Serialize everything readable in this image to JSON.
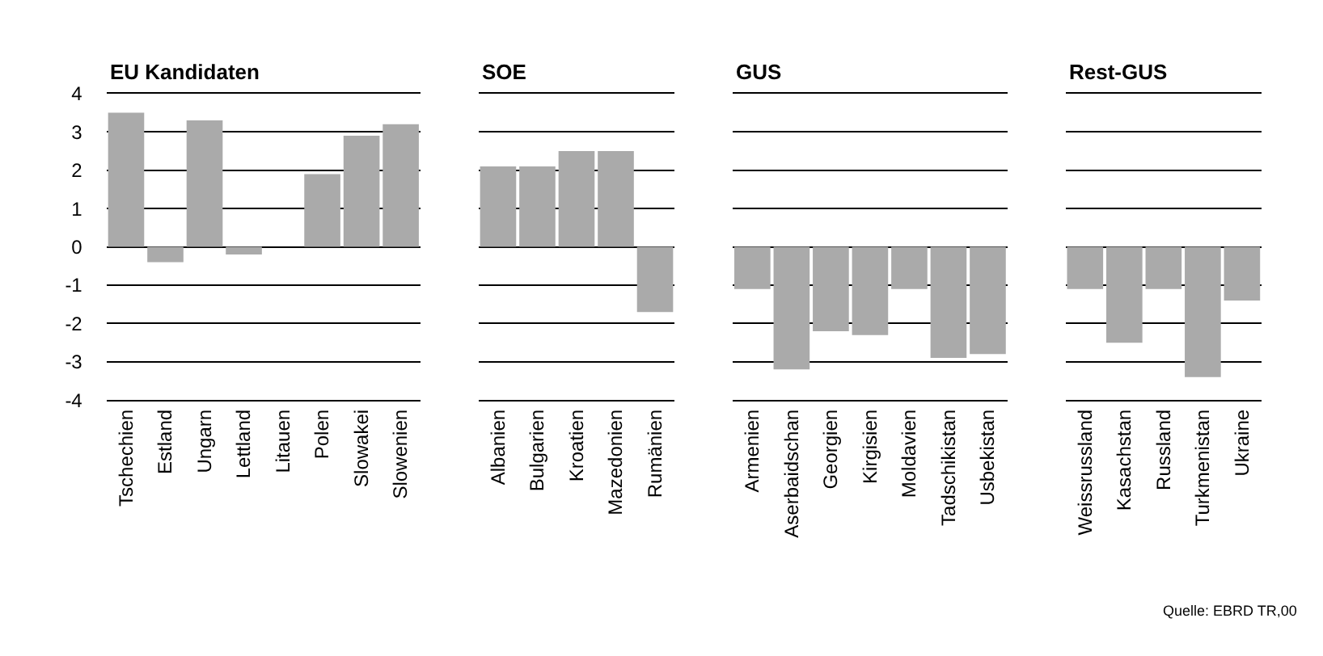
{
  "chart_data": [
    {
      "type": "bar",
      "title": "EU Kandidaten",
      "categories": [
        "Tschechien",
        "Estland",
        "Ungarn",
        "Lettland",
        "Litauen",
        "Polen",
        "Slowakei",
        "Slowenien"
      ],
      "values": [
        3.5,
        -0.4,
        3.3,
        -0.2,
        0,
        1.9,
        2.9,
        3.2
      ],
      "color": "#aaaaaa",
      "ylim": [
        -4,
        4
      ],
      "yticks": [
        -4,
        -3,
        -2,
        -1,
        0,
        1,
        2,
        3,
        4
      ],
      "grid": "y"
    },
    {
      "type": "bar",
      "title": "SOE",
      "categories": [
        "Albanien",
        "Bulgarien",
        "Kroatien",
        "Mazedonien",
        "Rumänien"
      ],
      "values": [
        2.1,
        2.1,
        2.5,
        2.5,
        -1.7
      ],
      "color": "#aaaaaa",
      "ylim": [
        -4,
        4
      ],
      "yticks": [
        -4,
        -3,
        -2,
        -1,
        0,
        1,
        2,
        3,
        4
      ],
      "grid": "y",
      "tick_labels": "x"
    },
    {
      "type": "bar",
      "title": "GUS",
      "categories": [
        "Armenien",
        "Aserbaidschan",
        "Georgien",
        "Kirgisien",
        "Moldavien",
        "Tadschikistan",
        "Usbekistan"
      ],
      "values": [
        -1.1,
        -3.2,
        -2.2,
        -2.3,
        -1.1,
        -2.9,
        -2.8
      ],
      "color": "#aaaaaa",
      "ylim": [
        -4,
        4
      ],
      "yticks": [
        -4,
        -3,
        -2,
        -1,
        0,
        1,
        2,
        3,
        4
      ],
      "grid": "y",
      "tick_labels": "x"
    },
    {
      "type": "bar",
      "title": "Rest-GUS",
      "categories": [
        "Weissrussland",
        "Kasachstan",
        "Russland",
        "Turkmenistan",
        "Ukraine"
      ],
      "values": [
        -1.1,
        -2.5,
        -1.1,
        -3.4,
        -1.4
      ],
      "color": "#aaaaaa",
      "ylim": [
        -4,
        4
      ],
      "yticks": [
        -4,
        -3,
        -2,
        -1,
        0,
        1,
        2,
        3,
        4
      ],
      "grid": "y",
      "tick_labels": "x",
      "annotations": [
        "Quelle: EBRD TR,00"
      ]
    }
  ]
}
